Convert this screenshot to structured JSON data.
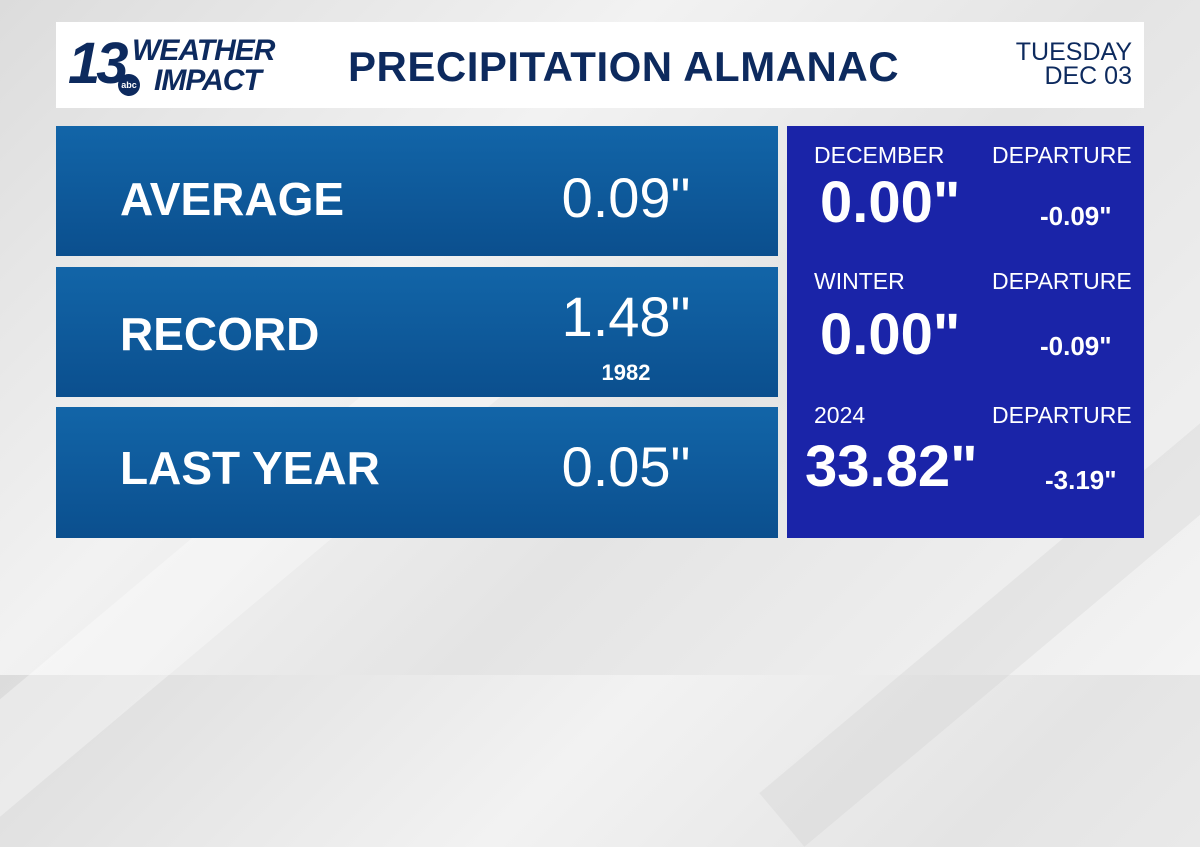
{
  "header": {
    "logo_number": "13",
    "logo_network": "abc",
    "logo_line1": "WEATHER",
    "logo_line2": "IMPACT",
    "title": "PRECIPITATION ALMANAC",
    "day": "TUESDAY",
    "date": "DEC 03"
  },
  "rows": [
    {
      "label": "AVERAGE",
      "value": "0.09\""
    },
    {
      "label": "RECORD",
      "value": "1.48\"",
      "year": "1982"
    },
    {
      "label": "LAST YEAR",
      "value": "0.05\""
    }
  ],
  "side": [
    {
      "label": "DECEMBER",
      "dep_label": "DEPARTURE",
      "value": "0.00\"",
      "departure": "-0.09\""
    },
    {
      "label": "WINTER",
      "dep_label": "DEPARTURE",
      "value": "0.00\"",
      "departure": "-0.09\""
    },
    {
      "label": "2024",
      "dep_label": "DEPARTURE",
      "value": "33.82\"",
      "departure": "-3.19\""
    }
  ],
  "colors": {
    "navy": "#0d2a5e",
    "row_blue": "#0b4f8e",
    "side_blue": "#1a24a8"
  }
}
